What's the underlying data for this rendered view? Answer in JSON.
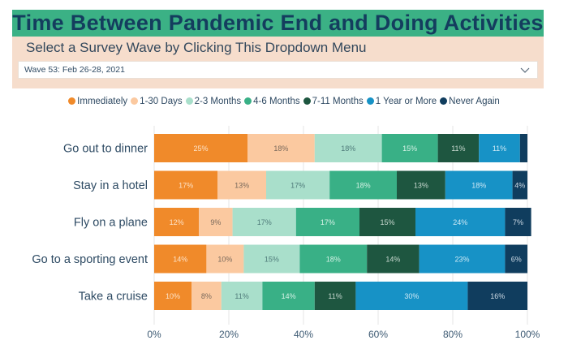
{
  "header": {
    "title": "Time Between Pandemic End and Doing Activities"
  },
  "selector": {
    "label": "Select a Survey Wave by Clicking This Dropdown Menu",
    "selected": "Wave 53: Feb 26-28, 2021",
    "chevron_icon": "chevron-down-icon"
  },
  "colors": {
    "title_bg": "#3bb185",
    "title_text": "#143d5e",
    "panel_bg": "#f6ddcc"
  },
  "chart_data": {
    "type": "bar",
    "orientation": "horizontal",
    "stacked": true,
    "title": "Time Between Pandemic End and Doing Activities",
    "xlabel": "",
    "ylabel": "",
    "xlim": [
      0,
      100
    ],
    "x_ticks": [
      "0%",
      "20%",
      "40%",
      "60%",
      "80%",
      "100%"
    ],
    "x_tick_values": [
      0,
      20,
      40,
      60,
      80,
      100
    ],
    "grid": true,
    "legend_position": "top",
    "categories": [
      "Go out to dinner",
      "Stay in a hotel",
      "Fly on a plane",
      "Go to a sporting event",
      "Take a cruise"
    ],
    "series": [
      {
        "name": "Immediately",
        "color": "#f08a2a",
        "label_color": "#fde3c8",
        "values": [
          25,
          17,
          12,
          14,
          10
        ]
      },
      {
        "name": "1-30 Days",
        "color": "#fbc9a0",
        "label_color": "#7a6a5c",
        "values": [
          18,
          13,
          9,
          10,
          8
        ]
      },
      {
        "name": "2-3 Months",
        "color": "#a9dfcb",
        "label_color": "#4f7b7a",
        "values": [
          18,
          17,
          17,
          15,
          11
        ]
      },
      {
        "name": "4-6 Months",
        "color": "#39b086",
        "label_color": "#d6f2e6",
        "values": [
          15,
          18,
          17,
          18,
          14
        ]
      },
      {
        "name": "7-11 Months",
        "color": "#1e5640",
        "label_color": "#c9d9d0",
        "values": [
          11,
          13,
          15,
          14,
          11
        ]
      },
      {
        "name": "1 Year or More",
        "color": "#1792c6",
        "label_color": "#cfe9f5",
        "values": [
          11,
          18,
          24,
          23,
          30
        ]
      },
      {
        "name": "Never Again",
        "color": "#103d5e",
        "label_color": "#cfdbe6",
        "values": [
          2,
          4,
          7,
          6,
          16
        ]
      }
    ],
    "data_labels": [
      [
        "25%",
        "18%",
        "18%",
        "15%",
        "11%",
        "11%",
        ""
      ],
      [
        "17%",
        "13%",
        "17%",
        "18%",
        "13%",
        "18%",
        "4%"
      ],
      [
        "12%",
        "9%",
        "17%",
        "17%",
        "15%",
        "24%",
        "7%"
      ],
      [
        "14%",
        "10%",
        "15%",
        "18%",
        "14%",
        "23%",
        "6%"
      ],
      [
        "10%",
        "8%",
        "11%",
        "14%",
        "11%",
        "30%",
        "16%"
      ]
    ]
  }
}
